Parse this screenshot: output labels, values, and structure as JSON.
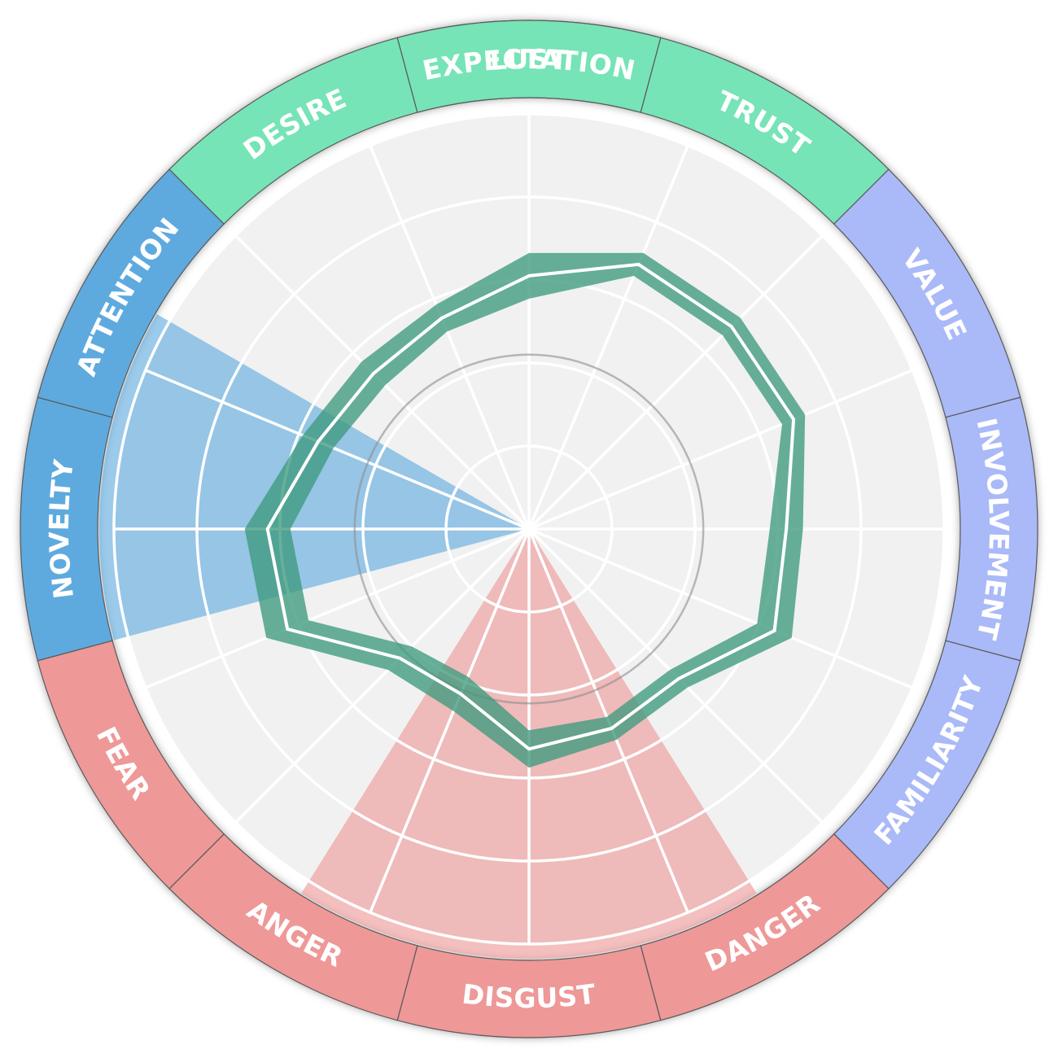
{
  "chart_data": {
    "type": "radar",
    "title": "",
    "axes": [
      "EXPECTATION",
      "TRUST",
      "VALUE",
      "INVOLVEMENT",
      "FAMILIARITY",
      "DANGER",
      "DISGUST",
      "ANGER",
      "FEAR",
      "NOVELTY",
      "ATTENTION",
      "DESIRE",
      "LUST"
    ],
    "groups": [
      {
        "name": "green-group",
        "axes": [
          "DESIRE",
          "LUST",
          "EXPECTATION",
          "TRUST"
        ],
        "color": "#76e4b6"
      },
      {
        "name": "purple-group",
        "axes": [
          "VALUE",
          "INVOLVEMENT",
          "FAMILIARITY"
        ],
        "color": "#aab9f7"
      },
      {
        "name": "red-group",
        "axes": [
          "DANGER",
          "DISGUST",
          "ANGER",
          "FEAR"
        ],
        "color": "#ee9898"
      },
      {
        "name": "blue-group",
        "axes": [
          "NOVELTY",
          "ATTENTION"
        ],
        "color": "#5eaadf"
      }
    ],
    "segments": [
      {
        "label": "EXPECTATION",
        "start": -15,
        "end": 15,
        "color": "#76e4b6"
      },
      {
        "label": "TRUST",
        "start": 15,
        "end": 45,
        "color": "#76e4b6"
      },
      {
        "label": "VALUE",
        "start": 45,
        "end": 75,
        "color": "#aab9f7"
      },
      {
        "label": "INVOLVEMENT",
        "start": 75,
        "end": 105,
        "color": "#aab9f7"
      },
      {
        "label": "FAMILIARITY",
        "start": 105,
        "end": 135,
        "color": "#aab9f7"
      },
      {
        "label": "DANGER",
        "start": 135,
        "end": 165,
        "color": "#ee9898"
      },
      {
        "label": "DISGUST",
        "start": 165,
        "end": 195,
        "color": "#ee9898"
      },
      {
        "label": "ANGER",
        "start": 195,
        "end": 225,
        "color": "#ee9898"
      },
      {
        "label": "FEAR",
        "start": 225,
        "end": 255,
        "color": "#ee9898"
      },
      {
        "label": "NOVELTY",
        "start": 255,
        "end": 285,
        "color": "#5eaadf"
      },
      {
        "label": "ATTENTION",
        "start": 285,
        "end": 315,
        "color": "#5eaadf"
      },
      {
        "label": "DESIRE",
        "start": 315,
        "end": 345,
        "color": "#76e4b6"
      },
      {
        "label": "LUST",
        "start": 345,
        "end": 375,
        "color": "#76e4b6"
      }
    ],
    "highlighted_sectors": [
      {
        "name": "blue-highlight",
        "start": 255,
        "end": 300,
        "color": "#5eaadf"
      },
      {
        "name": "red-highlight",
        "start": 148,
        "end": 212,
        "color": "#ee9898"
      }
    ],
    "rlim": [
      0,
      5
    ],
    "rings": [
      1,
      2,
      3,
      4,
      5
    ],
    "grid": true,
    "series": [
      {
        "color": "#3d9a7d",
        "angles": [
          0,
          22.5,
          45,
          67.5,
          90,
          112.5,
          135,
          157.5,
          180,
          202.5,
          225,
          247.5,
          270,
          292.5,
          315,
          337.5
        ],
        "values": [
          3.05,
          3.45,
          3.45,
          3.45,
          3.1,
          3.2,
          2.55,
          2.6,
          2.65,
          2.15,
          2.2,
          3.15,
          3.15,
          2.75,
          2.65,
          2.75
        ],
        "band": [
          0.55,
          0.3,
          0.3,
          0.3,
          0.4,
          0.45,
          0.3,
          0.3,
          0.45,
          0.45,
          0.4,
          0.55,
          0.55,
          0.4,
          0.4,
          0.35
        ]
      }
    ],
    "reference_circle": 2.1
  }
}
